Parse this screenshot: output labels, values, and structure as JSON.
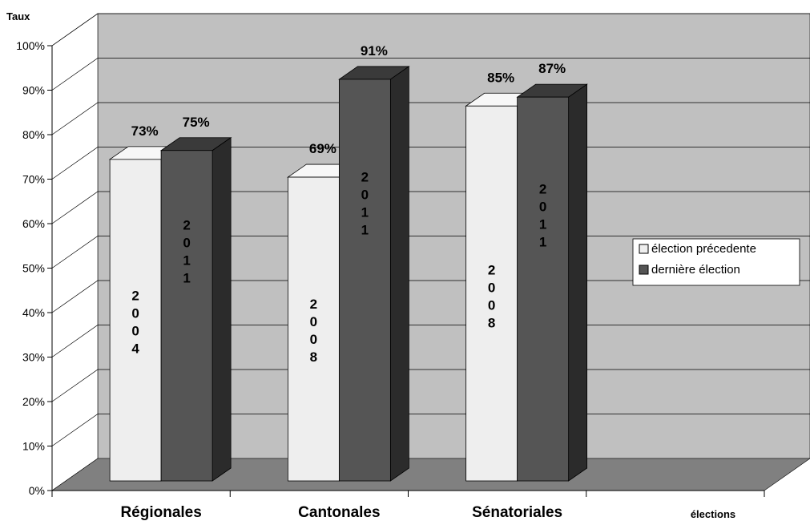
{
  "chart_data": {
    "type": "bar",
    "title": "",
    "ylabel": "Taux",
    "xlabel": "élections",
    "ylim": [
      0,
      100
    ],
    "yticks": [
      "0%",
      "10%",
      "20%",
      "30%",
      "40%",
      "50%",
      "60%",
      "70%",
      "80%",
      "90%",
      "100%"
    ],
    "categories": [
      "Régionales",
      "Cantonales",
      "Sénatoriales"
    ],
    "series": [
      {
        "name": "élection précedente",
        "color": "#eeeeee",
        "values": [
          73,
          69,
          85
        ],
        "value_labels": [
          "73%",
          "69%",
          "85%"
        ],
        "bar_text": [
          "2004",
          "2008",
          "2008"
        ]
      },
      {
        "name": "dernière élection",
        "color": "#555555",
        "values": [
          75,
          91,
          87
        ],
        "value_labels": [
          "75%",
          "91%",
          "87%"
        ],
        "bar_text": [
          "2011",
          "2011",
          "2011"
        ]
      }
    ],
    "grid": true,
    "legend_position": "right",
    "style": "3d",
    "wall_color": "#c0c0c0",
    "floor_color": "#808080"
  }
}
